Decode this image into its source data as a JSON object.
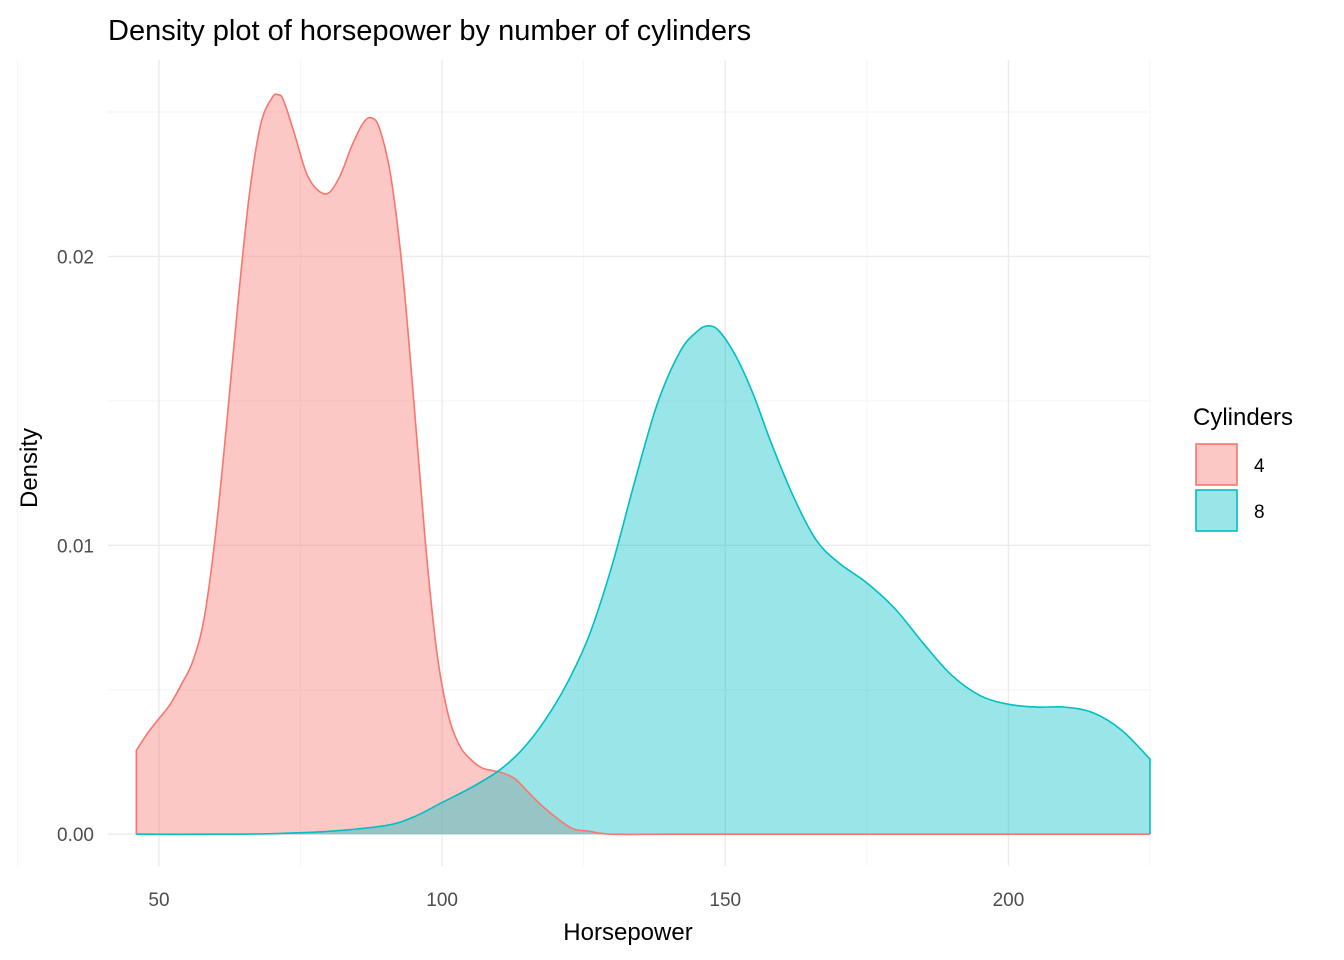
{
  "chart_data": {
    "type": "area",
    "title": "Density plot of horsepower by number of cylinders",
    "xlabel": "Horsepower",
    "ylabel": "Density",
    "xlim": [
      41,
      225
    ],
    "ylim": [
      -0.0011,
      0.0268
    ],
    "x_ticks": [
      50,
      100,
      150,
      200
    ],
    "x_tick_labels": [
      "50",
      "100",
      "150",
      "200"
    ],
    "y_ticks": [
      0,
      0.01,
      0.02
    ],
    "y_tick_labels": [
      "0.00",
      "0.01",
      "0.02"
    ],
    "grid": true,
    "legend": {
      "title": "Cylinders",
      "position": "right"
    },
    "series": [
      {
        "name": "4",
        "line_color": "#f8766d",
        "fill_color": "#f8766d",
        "fill_opacity": 0.4,
        "x": [
          46,
          48,
          50,
          52,
          54,
          56,
          58,
          60,
          62,
          64,
          66,
          68,
          70,
          71,
          72,
          74,
          76,
          78,
          80,
          82,
          84,
          86,
          87.5,
          89,
          91,
          93,
          95,
          97,
          99,
          101,
          103,
          105,
          107,
          109,
          111,
          113,
          115,
          117,
          120,
          123,
          126,
          130,
          140,
          160,
          180,
          200,
          225
        ],
        "y": [
          0.0029,
          0.0035,
          0.004,
          0.0045,
          0.0052,
          0.006,
          0.0075,
          0.0104,
          0.0143,
          0.0185,
          0.0222,
          0.0246,
          0.0255,
          0.0256,
          0.0254,
          0.0242,
          0.0229,
          0.0223,
          0.0222,
          0.0228,
          0.0238,
          0.0246,
          0.0248,
          0.0244,
          0.0227,
          0.0195,
          0.015,
          0.0102,
          0.0064,
          0.0042,
          0.0031,
          0.0026,
          0.0023,
          0.0022,
          0.0021,
          0.0019,
          0.0015,
          0.0011,
          0.0006,
          0.0002,
          0.0001,
          0.0,
          0.0,
          0.0,
          0.0,
          0.0,
          0.0
        ]
      },
      {
        "name": "8",
        "line_color": "#00bfc4",
        "fill_color": "#00bfc4",
        "fill_opacity": 0.4,
        "x": [
          46,
          60,
          70,
          80,
          90,
          95,
          100,
          105,
          110,
          114,
          118,
          122,
          126,
          130,
          134,
          138,
          142,
          145,
          147,
          149,
          152,
          155,
          158,
          162,
          166,
          170,
          175,
          180,
          185,
          190,
          195,
          200,
          205,
          210,
          215,
          220,
          225
        ],
        "y": [
          0.0,
          0.0,
          2e-05,
          0.0001,
          0.0003,
          0.0006,
          0.0011,
          0.0016,
          0.0022,
          0.0029,
          0.0039,
          0.0052,
          0.0069,
          0.0093,
          0.0122,
          0.0149,
          0.0167,
          0.0174,
          0.0176,
          0.0174,
          0.0165,
          0.0152,
          0.0136,
          0.0117,
          0.0102,
          0.0094,
          0.0087,
          0.0078,
          0.0066,
          0.0055,
          0.0048,
          0.0045,
          0.0044,
          0.0044,
          0.0042,
          0.0036,
          0.0026
        ]
      }
    ]
  }
}
